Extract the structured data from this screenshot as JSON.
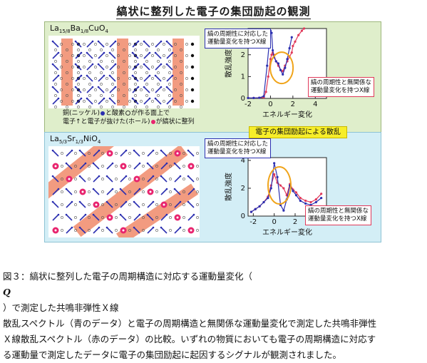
{
  "title": "縞状に整列した電子の集団励起の観測",
  "top_panel": {
    "material_base": "La",
    "material_sub1": "15/8",
    "material_mid": "Ba",
    "material_sub2": "1/8",
    "material_end": "CuO",
    "material_sub3": "4",
    "legend_line1_a": "銅(ニッケル)",
    "legend_line1_b": "と酸素",
    "legend_line1_c": "が作る面上で",
    "legend_line2_a": "電子↑と電子が抜けた(ホール)",
    "legend_line2_b": "が縞状に整列",
    "callout_blue": [
      "縞の周期性に対応した",
      "運動量変化を持つX線"
    ],
    "callout_red": [
      "縞の周期性と無関係な",
      "運動量変化を持つX線"
    ]
  },
  "mid_label": "電子の集団励起による散乱",
  "bottom_panel": {
    "material_base": "La",
    "material_sub1": "5/3",
    "material_mid": "Sr",
    "material_sub2": "1/3",
    "material_end": "NiO",
    "material_sub3": "4",
    "callout_blue": [
      "縞の周期性に対応した",
      "運動量変化を持つX線"
    ],
    "callout_red": [
      "縞の周期性と無関係な",
      "運動量変化を持つX線"
    ]
  },
  "colors": {
    "blue_series": "#2b2fb0",
    "red_series": "#e0395a",
    "stripe": "#f08a6a",
    "hole": "#e8246e"
  },
  "chart_data": [
    {
      "type": "line",
      "xlabel": "エネルギー変化",
      "ylabel": "散乱強度",
      "xlim": [
        -2,
        5
      ],
      "ylim": [
        0,
        3.2
      ],
      "xticks": [
        "-2",
        "0",
        "2",
        "4"
      ],
      "yticks": [
        "0",
        "1",
        "2"
      ],
      "series": [
        {
          "x": [
            -2,
            -1.5,
            -1,
            -0.6,
            -0.4,
            -0.2,
            0,
            0.1,
            0.2,
            0.3,
            0.5,
            0.7,
            0.9,
            1.1,
            1.3,
            1.5,
            1.7,
            1.9,
            2.0,
            2.2,
            2.5,
            2.8,
            3.0
          ],
          "y": [
            0.02,
            0.02,
            0.03,
            0.05,
            0.3,
            1.0,
            1.8,
            2.0,
            2.1,
            2.0,
            1.7,
            1.5,
            1.3,
            1.25,
            1.5,
            1.7,
            1.9,
            2.1,
            2.4,
            2.6,
            2.9,
            3.1,
            3.2
          ]
        },
        {
          "x": [
            -2,
            -1.5,
            -1,
            -0.6,
            -0.3,
            -0.1,
            0,
            0.1,
            0.2,
            0.3,
            0.5,
            0.7,
            0.9,
            1.1,
            1.3,
            1.5,
            1.7,
            1.9
          ],
          "y": [
            0.02,
            0.02,
            0.03,
            0.1,
            1.5,
            2.6,
            3.1,
            3.0,
            2.2,
            1.9,
            1.7,
            1.6,
            1.3,
            1.1,
            1.4,
            1.8,
            2.3,
            2.8
          ]
        }
      ]
    },
    {
      "type": "line",
      "xlabel": "エネルギー変化",
      "ylabel": "散乱強度",
      "xlim": [
        -2.5,
        5
      ],
      "ylim": [
        0,
        4.2
      ],
      "xticks": [
        "-2",
        "0",
        "2",
        "4"
      ],
      "yticks": [
        "0",
        "2",
        "4"
      ],
      "series": [
        {
          "x": [
            -2.2,
            -1.8,
            -1.4,
            -1.0,
            -0.6,
            -0.3,
            0,
            0.3,
            0.6,
            0.9,
            1.2,
            1.5,
            1.8,
            2.1,
            2.5,
            3.0,
            3.5,
            4.0,
            4.5
          ],
          "y": [
            0.3,
            0.5,
            0.7,
            1.0,
            1.4,
            2.2,
            3.0,
            2.4,
            2.2,
            2.0,
            1.5,
            2.3,
            1.9,
            1.7,
            1.3,
            1.1,
            1.0,
            1.2,
            1.6
          ]
        },
        {
          "x": [
            -2.2,
            -1.8,
            -1.4,
            -1.0,
            -0.6,
            -0.3,
            0,
            0.3,
            0.6,
            0.9,
            1.2,
            1.5,
            1.8,
            2.1,
            2.5,
            3.0,
            3.5,
            4.0,
            4.5
          ],
          "y": [
            0.3,
            0.5,
            0.7,
            1.0,
            1.3,
            2.0,
            3.8,
            2.8,
            0.8,
            0.4,
            1.2,
            2.2,
            1.8,
            1.5,
            1.1,
            0.9,
            0.8,
            1.0,
            1.3
          ]
        }
      ]
    }
  ],
  "caption": {
    "line1_a": "図３：縞状に整列した電子の周期構造に対応する運動量変化（",
    "line1_q": "Q",
    "line1_b": "）で測定した共鳴非弾性Ｘ線",
    "line2": "散乱スペクトル（青のデータ）と電子の周期構造と無関係な運動量変化で測定した共鳴非弾性",
    "line3": "Ｘ線散乱スペクトル（赤のデータ）の比較。いずれの物質においても電子の周期構造に対応す",
    "line4": "る運動量で測定したデータに電子の集団励起に起因するシグナルが観測されました。"
  }
}
